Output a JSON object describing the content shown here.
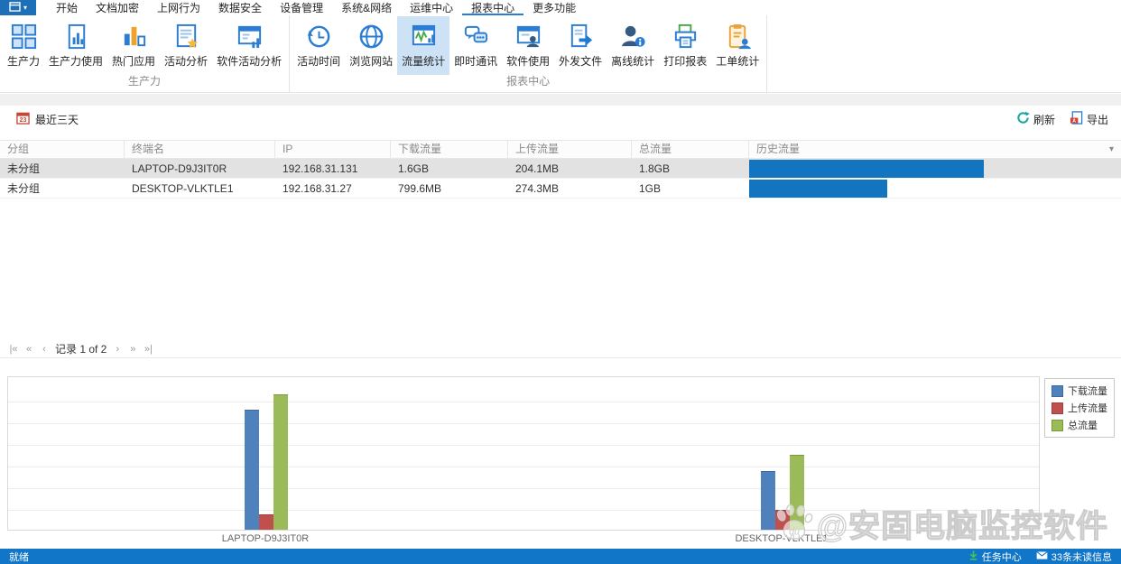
{
  "menu": {
    "app_button": {
      "icon": "app-window-icon"
    },
    "items": [
      {
        "label": "开始",
        "selected": false
      },
      {
        "label": "文档加密",
        "selected": false
      },
      {
        "label": "上网行为",
        "selected": false
      },
      {
        "label": "数据安全",
        "selected": false
      },
      {
        "label": "设备管理",
        "selected": false
      },
      {
        "label": "系统&网络",
        "selected": false
      },
      {
        "label": "运维中心",
        "selected": false
      },
      {
        "label": "报表中心",
        "selected": true
      },
      {
        "label": "更多功能",
        "selected": false
      }
    ]
  },
  "ribbon": {
    "groups": [
      {
        "label": "生产力",
        "buttons": [
          {
            "label": "生产力",
            "icon": "grid",
            "selected": false
          },
          {
            "label": "生产力使用",
            "icon": "doc-chart",
            "selected": false
          },
          {
            "label": "热门应用",
            "icon": "bar-chart",
            "selected": false
          },
          {
            "label": "活动分析",
            "icon": "doc-star",
            "selected": false
          },
          {
            "label": "软件活动分析",
            "icon": "window-chart",
            "selected": false
          }
        ]
      },
      {
        "label": "报表中心",
        "buttons": [
          {
            "label": "活动时间",
            "icon": "history-clock",
            "selected": false
          },
          {
            "label": "浏览网站",
            "icon": "globe",
            "selected": false
          },
          {
            "label": "流量统计",
            "icon": "traffic-chart",
            "selected": true
          },
          {
            "label": "即时通讯",
            "icon": "chat",
            "selected": false
          },
          {
            "label": "软件使用",
            "icon": "window-user",
            "selected": false
          },
          {
            "label": "外发文件",
            "icon": "doc-arrow",
            "selected": false
          },
          {
            "label": "离线统计",
            "icon": "user-info",
            "selected": false
          },
          {
            "label": "打印报表",
            "icon": "printer",
            "selected": false
          },
          {
            "label": "工单统计",
            "icon": "clipboard-user",
            "selected": false
          }
        ]
      }
    ]
  },
  "toolbar": {
    "date_filter": "最近三天",
    "date_filter_icon": "calendar-icon",
    "refresh_label": "刷新",
    "refresh_icon": "refresh-icon",
    "export_label": "导出",
    "export_icon": "export-icon"
  },
  "table": {
    "columns": [
      "分组",
      "终端名",
      "IP",
      "下载流量",
      "上传流量",
      "总流量",
      "历史流量"
    ],
    "history_filter_icon": "chevron-down-icon",
    "rows": [
      {
        "group": "未分组",
        "terminal": "LAPTOP-D9J3IT0R",
        "ip": "192.168.31.131",
        "download": "1.6GB",
        "upload": "204.1MB",
        "total": "1.8GB",
        "history_bar_ratio": 0.63,
        "selected": true
      },
      {
        "group": "未分组",
        "terminal": "DESKTOP-VLKTLE1",
        "ip": "192.168.31.27",
        "download": "799.6MB",
        "upload": "274.3MB",
        "total": "1GB",
        "history_bar_ratio": 0.372,
        "selected": false
      }
    ],
    "history_bar_color": "#1374c0"
  },
  "pagination": {
    "label": "记录 1 of 2",
    "buttons_left": [
      {
        "name": "first-page",
        "glyph": "|«"
      },
      {
        "name": "fast-prev-page",
        "glyph": "«"
      },
      {
        "name": "prev-page",
        "glyph": "‹"
      }
    ],
    "buttons_right": [
      {
        "name": "next-page",
        "glyph": "›"
      },
      {
        "name": "fast-next-page",
        "glyph": "»"
      },
      {
        "name": "last-page",
        "glyph": "»|"
      }
    ]
  },
  "chart_data": {
    "type": "bar",
    "categories": [
      "LAPTOP-D9J3IT0R",
      "DESKTOP-VLKTLE1"
    ],
    "series": [
      {
        "name": "下载流量",
        "color": "#4f81bd",
        "border": "#3f6aa0",
        "values_mb": [
          1638.4,
          799.6
        ]
      },
      {
        "name": "上传流量",
        "color": "#c0504d",
        "border": "#a03f3f",
        "values_mb": [
          204.1,
          274.3
        ]
      },
      {
        "name": "总流量",
        "color": "#9bbb59",
        "border": "#7a9b33",
        "values_mb": [
          1843.2,
          1024
        ]
      }
    ],
    "ylim_mb": [
      0,
      2100
    ],
    "grid": true,
    "gridline_count": 6,
    "legend_position": "top-right"
  },
  "status_bar": {
    "left": "就绪",
    "task_center": "任务中心",
    "task_center_icon": "download-arrow-icon",
    "unread": "33条未读信息",
    "unread_icon": "envelope-icon",
    "bar_color": "#1176c8"
  },
  "watermark": {
    "text": "@安固电脑监控软件",
    "icon": "paw-icon"
  }
}
